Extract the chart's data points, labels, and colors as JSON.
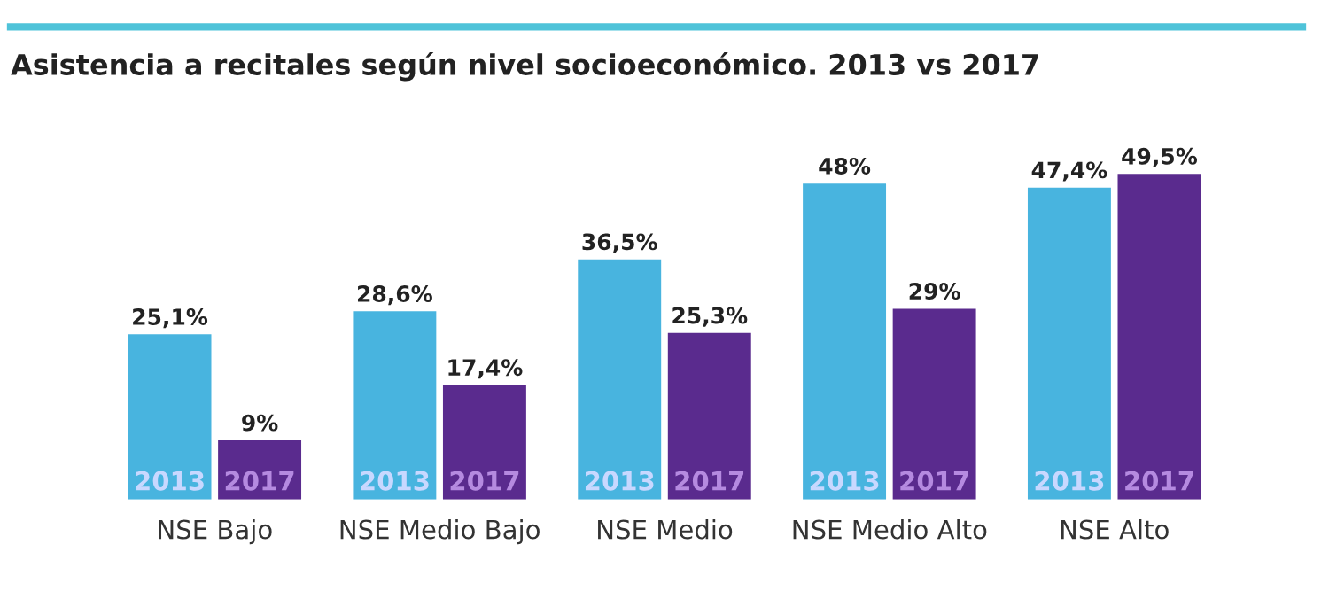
{
  "chart_data": {
    "type": "bar",
    "title": "Asistencia a recitales según nivel socioeconómico. 2013 vs 2017",
    "categories": [
      "NSE Bajo",
      "NSE Medio Bajo",
      "NSE Medio",
      "NSE Medio Alto",
      "NSE Alto"
    ],
    "series": [
      {
        "name": "2013",
        "color": "#48b4df",
        "values": [
          25.1,
          28.6,
          36.5,
          48,
          47.4
        ],
        "value_labels": [
          "25,1%",
          "28,6%",
          "36,5%",
          "48%",
          "47,4%"
        ]
      },
      {
        "name": "2017",
        "color": "#5a2b8e",
        "values": [
          9,
          17.4,
          25.3,
          29,
          49.5
        ],
        "value_labels": [
          "9%",
          "17,4%",
          "25,3%",
          "29%",
          "49,5%"
        ]
      }
    ],
    "legend": false,
    "grid": false
  }
}
